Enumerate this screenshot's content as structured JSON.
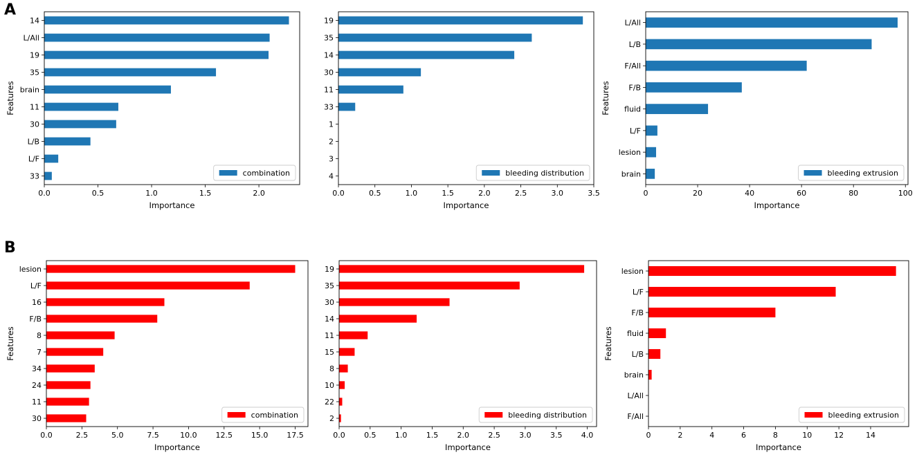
{
  "panels": [
    {
      "label": "A"
    },
    {
      "label": "B"
    }
  ],
  "colors": {
    "blue": "#1f77b4",
    "red": "#ff0000"
  },
  "chart_data": [
    {
      "id": "A1",
      "type": "bar",
      "orientation": "horizontal",
      "panel": "A",
      "xlabel": "Importance",
      "ylabel": "Features",
      "categories": [
        "14",
        "L/All",
        "19",
        "35",
        "brain",
        "11",
        "30",
        "L/B",
        "L/F",
        "33"
      ],
      "values": [
        2.28,
        2.1,
        2.09,
        1.6,
        1.18,
        0.69,
        0.67,
        0.43,
        0.13,
        0.07
      ],
      "xlim": [
        0,
        2.38
      ],
      "xticks": [
        0,
        0.5,
        1.0,
        1.5,
        2.0
      ],
      "xtick_labels": [
        "0.0",
        "0.5",
        "1.0",
        "1.5",
        "2.0"
      ],
      "legend": "combination",
      "legend_loc": "lower right",
      "color": "#1f77b4"
    },
    {
      "id": "A2",
      "type": "bar",
      "orientation": "horizontal",
      "panel": "A",
      "xlabel": "Importance",
      "ylabel": "",
      "categories": [
        "19",
        "35",
        "14",
        "30",
        "11",
        "33",
        "1",
        "2",
        "3",
        "4"
      ],
      "values": [
        3.35,
        2.65,
        2.41,
        1.13,
        0.89,
        0.23,
        0,
        0,
        0,
        0
      ],
      "xlim": [
        0,
        3.5
      ],
      "xticks": [
        0,
        0.5,
        1.0,
        1.5,
        2.0,
        2.5,
        3.0,
        3.5
      ],
      "xtick_labels": [
        "0.0",
        "0.5",
        "1.0",
        "1.5",
        "2.0",
        "2.5",
        "3.0",
        "3.5"
      ],
      "legend": "bleeding distribution",
      "legend_loc": "lower right",
      "color": "#1f77b4"
    },
    {
      "id": "A3",
      "type": "bar",
      "orientation": "horizontal",
      "panel": "A",
      "xlabel": "Importance",
      "ylabel": "Features",
      "categories": [
        "L/All",
        "L/B",
        "F/All",
        "F/B",
        "fluid",
        "L/F",
        "lesion",
        "brain"
      ],
      "values": [
        97,
        87,
        62,
        37,
        24,
        4.5,
        4,
        3.5
      ],
      "xlim": [
        0,
        101
      ],
      "xticks": [
        0,
        20,
        40,
        60,
        80,
        100
      ],
      "xtick_labels": [
        "0",
        "20",
        "40",
        "60",
        "80",
        "100"
      ],
      "legend": "bleeding extrusion",
      "legend_loc": "lower right",
      "color": "#1f77b4"
    },
    {
      "id": "B1",
      "type": "bar",
      "orientation": "horizontal",
      "panel": "B",
      "xlabel": "Importance",
      "ylabel": "Features",
      "categories": [
        "lesion",
        "L/F",
        "16",
        "F/B",
        "8",
        "7",
        "34",
        "24",
        "11",
        "30"
      ],
      "values": [
        17.5,
        14.3,
        8.3,
        7.8,
        4.8,
        4.0,
        3.4,
        3.1,
        3.0,
        2.8
      ],
      "xlim": [
        0,
        18.4
      ],
      "xticks": [
        0,
        2.5,
        5.0,
        7.5,
        10.0,
        12.5,
        15.0,
        17.5
      ],
      "xtick_labels": [
        "0.0",
        "2.5",
        "5.0",
        "7.5",
        "10.0",
        "12.5",
        "15.0",
        "17.5"
      ],
      "legend": "combination",
      "legend_loc": "lower right",
      "color": "#ff0000"
    },
    {
      "id": "B2",
      "type": "bar",
      "orientation": "horizontal",
      "panel": "B",
      "xlabel": "Importance",
      "ylabel": "",
      "categories": [
        "19",
        "35",
        "30",
        "14",
        "11",
        "15",
        "8",
        "10",
        "22",
        "2"
      ],
      "values": [
        3.95,
        2.91,
        1.78,
        1.25,
        0.46,
        0.25,
        0.14,
        0.09,
        0.05,
        0.03
      ],
      "xlim": [
        0,
        4.15
      ],
      "xticks": [
        0,
        0.5,
        1.0,
        1.5,
        2.0,
        2.5,
        3.0,
        3.5,
        4.0
      ],
      "xtick_labels": [
        "0.0",
        "0.5",
        "1.0",
        "1.5",
        "2.0",
        "2.5",
        "3.0",
        "3.5",
        "4.0"
      ],
      "legend": "bleeding distribution",
      "legend_loc": "lower right",
      "color": "#ff0000"
    },
    {
      "id": "B3",
      "type": "bar",
      "orientation": "horizontal",
      "panel": "B",
      "xlabel": "Importance",
      "ylabel": "Features",
      "categories": [
        "lesion",
        "L/F",
        "F/B",
        "fluid",
        "L/B",
        "brain",
        "L/All",
        "F/All"
      ],
      "values": [
        15.6,
        11.8,
        8.0,
        1.1,
        0.75,
        0.2,
        0,
        0
      ],
      "xlim": [
        0,
        16.4
      ],
      "xticks": [
        0,
        2,
        4,
        6,
        8,
        10,
        12,
        14
      ],
      "xtick_labels": [
        "0",
        "2",
        "4",
        "6",
        "8",
        "10",
        "12",
        "14"
      ],
      "legend": "bleeding extrusion",
      "legend_loc": "lower right",
      "color": "#ff0000"
    }
  ]
}
